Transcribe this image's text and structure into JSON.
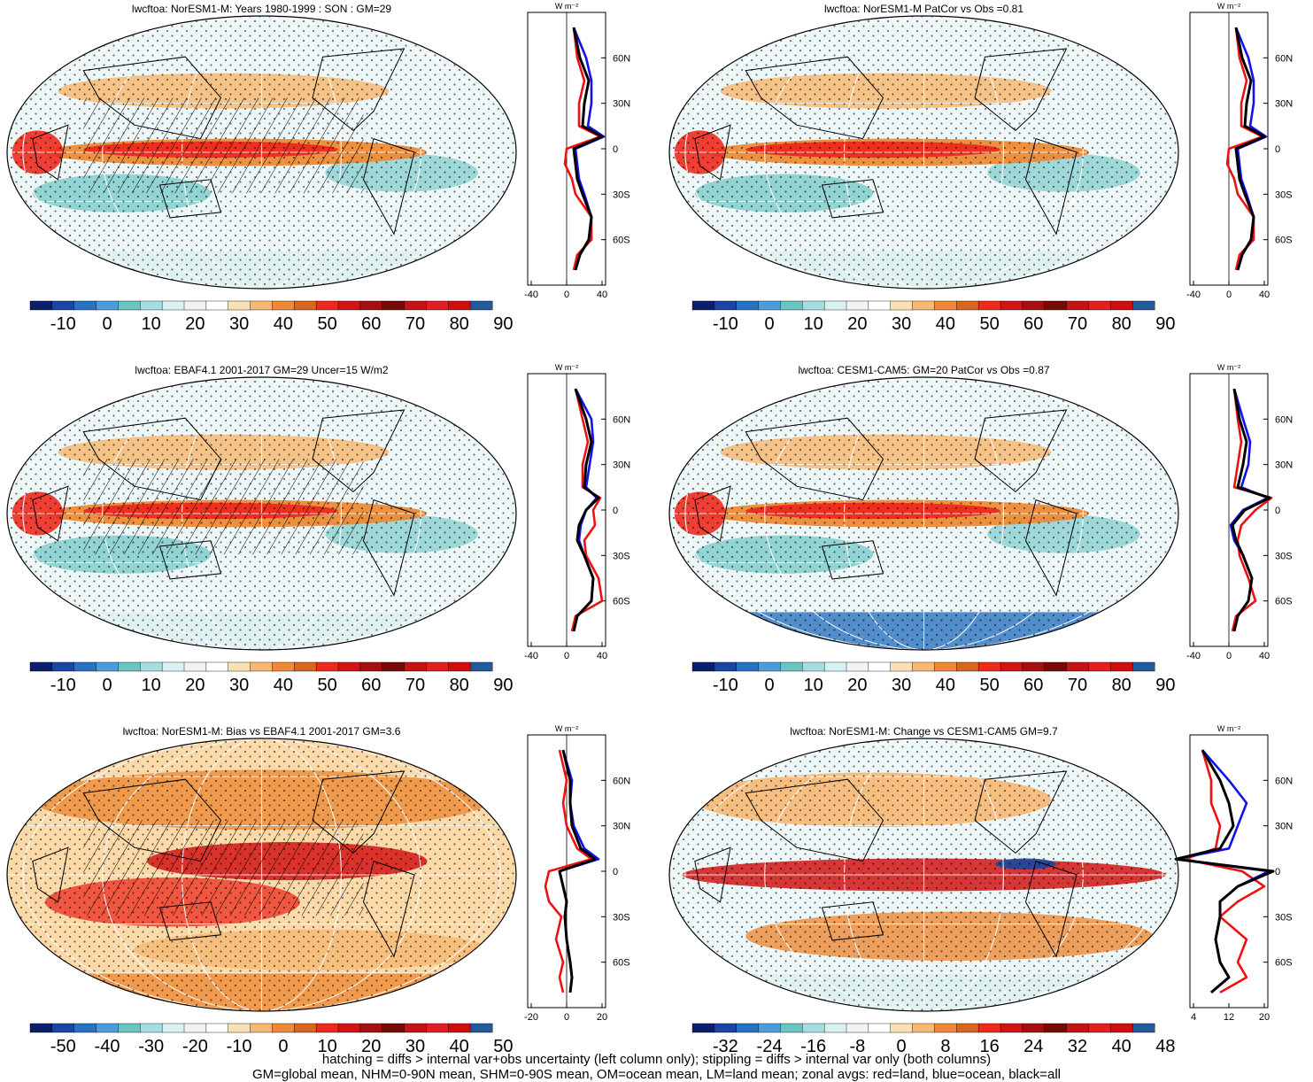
{
  "panels": [
    {
      "title": "lwcftoa: NorESM1-M: Years 1980-1999 : SON : GM=29",
      "colorbar": {
        "labels": [
          "-10",
          "0",
          "10",
          "20",
          "30",
          "40",
          "50",
          "60",
          "70",
          "80",
          "90"
        ]
      },
      "zonal": {
        "xticks": [
          "-40",
          "0",
          "40"
        ],
        "units": "W m⁻²",
        "lat_labels": [
          "60N",
          "30N",
          "0",
          "30S",
          "60S"
        ]
      },
      "hatching": true,
      "stippling": true
    },
    {
      "title": "lwcftoa: NorESM1-M PatCor vs Obs =0.81",
      "colorbar": {
        "labels": [
          "-10",
          "0",
          "10",
          "20",
          "30",
          "40",
          "50",
          "60",
          "70",
          "80",
          "90"
        ]
      },
      "zonal": {
        "xticks": [
          "-40",
          "0",
          "40"
        ],
        "units": "W m⁻²",
        "lat_labels": [
          "60N",
          "30N",
          "0",
          "30S",
          "60S"
        ]
      },
      "hatching": false,
      "stippling": true
    },
    {
      "title": "lwcftoa: EBAF4.1 2001-2017 GM=29 Uncer=15 W/m2",
      "colorbar": {
        "labels": [
          "-10",
          "0",
          "10",
          "20",
          "30",
          "40",
          "50",
          "60",
          "70",
          "80",
          "90"
        ]
      },
      "zonal": {
        "xticks": [
          "-40",
          "0",
          "40"
        ],
        "units": "W m⁻²",
        "lat_labels": [
          "60N",
          "30N",
          "0",
          "30S",
          "60S"
        ]
      },
      "hatching": true,
      "stippling": true
    },
    {
      "title": "lwcftoa: CESM1-CAM5: GM=20 PatCor vs Obs =0.87",
      "colorbar": {
        "labels": [
          "-10",
          "0",
          "10",
          "20",
          "30",
          "40",
          "50",
          "60",
          "70",
          "80",
          "90"
        ]
      },
      "zonal": {
        "xticks": [
          "-40",
          "0",
          "40"
        ],
        "units": "W m⁻²",
        "lat_labels": [
          "60N",
          "30N",
          "0",
          "30S",
          "60S"
        ]
      },
      "hatching": false,
      "stippling": true
    },
    {
      "title": "lwcftoa: NorESM1-M: Bias vs EBAF4.1 2001-2017  GM=3.6",
      "colorbar": {
        "labels": [
          "-50",
          "-40",
          "-30",
          "-20",
          "-10",
          "0",
          "10",
          "20",
          "30",
          "40",
          "50"
        ]
      },
      "zonal": {
        "xticks": [
          "-20",
          "0",
          "20"
        ],
        "units": "W m⁻²",
        "lat_labels": [
          "60N",
          "30N",
          "0",
          "30S",
          "60S"
        ]
      },
      "hatching": true,
      "stippling": true
    },
    {
      "title": "lwcftoa: NorESM1-M: Change vs CESM1-CAM5 GM=9.7",
      "colorbar": {
        "labels": [
          "-32",
          "-24",
          "-16",
          "-8",
          "0",
          "8",
          "16",
          "24",
          "32",
          "40",
          "48"
        ]
      },
      "zonal": {
        "xticks": [
          "4",
          "12",
          "20"
        ],
        "units": "W m⁻²",
        "lat_labels": [
          "60N",
          "30N",
          "0",
          "30S",
          "60S"
        ]
      },
      "hatching": false,
      "stippling": true
    }
  ],
  "colorbar_palette": [
    "#0b1f6b",
    "#1846a0",
    "#2a72c0",
    "#4f9bd9",
    "#6bc3c3",
    "#a5dede",
    "#d8f2f2",
    "#f2f2f2",
    "#ffffff",
    "#fbe0b4",
    "#f6b873",
    "#ec8a36",
    "#d9661c",
    "#ee2a1e",
    "#d21414",
    "#a50f0f",
    "#7a0707",
    "#c51414",
    "#e21f1f",
    "#d10e0e",
    "#225b9a"
  ],
  "footer": {
    "line1": "hatching = diffs > internal var+obs uncertainty (left column only); stippling = diffs > internal var only (both columns)",
    "line2": "GM=global mean, NHM=0-90N mean, SHM=0-90S mean, OM=ocean mean, LM=land mean; zonal avgs: red=land, blue=ocean, black=all"
  },
  "chart_data": [
    {
      "type": "heatmap",
      "title": "lwcftoa: NorESM1-M: Years 1980-1999 : SON : GM=29",
      "colorbar_range": [
        -10,
        90
      ],
      "zonal_mean": {
        "lat": [
          80,
          60,
          45,
          30,
          15,
          8,
          0,
          -10,
          -20,
          -30,
          -45,
          -60,
          -70,
          -80
        ],
        "all": [
          8,
          15,
          25,
          20,
          18,
          40,
          8,
          10,
          12,
          18,
          28,
          25,
          15,
          10
        ],
        "ocean": [
          8,
          22,
          28,
          28,
          24,
          42,
          10,
          12,
          14,
          20,
          28,
          25,
          15,
          10
        ],
        "land": [
          8,
          12,
          20,
          14,
          14,
          38,
          0,
          -2,
          6,
          10,
          28,
          28,
          12,
          8
        ]
      }
    },
    {
      "type": "heatmap",
      "title": "lwcftoa: NorESM1-M PatCor vs Obs =0.81",
      "colorbar_range": [
        -10,
        90
      ],
      "zonal_mean": {
        "lat": [
          80,
          60,
          45,
          30,
          15,
          8,
          0,
          -10,
          -20,
          -30,
          -45,
          -60,
          -70,
          -80
        ],
        "all": [
          8,
          15,
          25,
          20,
          18,
          40,
          8,
          10,
          12,
          18,
          28,
          25,
          15,
          10
        ],
        "ocean": [
          8,
          22,
          28,
          28,
          24,
          42,
          10,
          12,
          14,
          20,
          28,
          25,
          15,
          10
        ],
        "land": [
          8,
          12,
          20,
          14,
          14,
          38,
          0,
          -2,
          6,
          10,
          28,
          28,
          12,
          8
        ]
      }
    },
    {
      "type": "heatmap",
      "title": "lwcftoa: EBAF4.1 2001-2017 GM=29 Uncer=15 W/m2",
      "colorbar_range": [
        -10,
        90
      ],
      "zonal_mean": {
        "lat": [
          80,
          60,
          45,
          30,
          15,
          8,
          0,
          -10,
          -20,
          -30,
          -45,
          -60,
          -70,
          -80
        ],
        "all": [
          10,
          22,
          28,
          22,
          20,
          36,
          22,
          14,
          12,
          20,
          30,
          28,
          12,
          8
        ],
        "ocean": [
          10,
          28,
          30,
          26,
          22,
          34,
          22,
          16,
          14,
          20,
          30,
          28,
          12,
          8
        ],
        "land": [
          10,
          18,
          24,
          18,
          18,
          38,
          30,
          32,
          20,
          22,
          36,
          40,
          10,
          6
        ]
      }
    },
    {
      "type": "heatmap",
      "title": "lwcftoa: CESM1-CAM5: GM=20 PatCor vs Obs =0.87",
      "colorbar_range": [
        -10,
        90
      ],
      "zonal_mean": {
        "lat": [
          80,
          60,
          45,
          30,
          15,
          8,
          0,
          -10,
          -20,
          -30,
          -45,
          -60,
          -70,
          -80
        ],
        "all": [
          6,
          12,
          20,
          16,
          10,
          46,
          18,
          4,
          8,
          16,
          26,
          22,
          10,
          6
        ],
        "ocean": [
          6,
          16,
          24,
          22,
          14,
          44,
          16,
          2,
          6,
          16,
          26,
          22,
          10,
          6
        ],
        "land": [
          6,
          10,
          14,
          10,
          6,
          48,
          30,
          14,
          10,
          12,
          22,
          30,
          8,
          4
        ]
      }
    },
    {
      "type": "heatmap",
      "title": "lwcftoa: NorESM1-M: Bias vs EBAF4.1 2001-2017  GM=3.6",
      "colorbar_range": [
        -50,
        50
      ],
      "zonal_mean": {
        "lat": [
          80,
          60,
          45,
          30,
          15,
          8,
          0,
          -10,
          -20,
          -30,
          -45,
          -60,
          -70,
          -80
        ],
        "all": [
          -2,
          2,
          2,
          3,
          8,
          16,
          -4,
          -2,
          0,
          -1,
          0,
          2,
          3,
          2
        ],
        "ocean": [
          -2,
          3,
          2,
          4,
          10,
          18,
          -4,
          -2,
          0,
          -1,
          0,
          2,
          3,
          2
        ],
        "land": [
          -4,
          0,
          -2,
          0,
          6,
          14,
          -10,
          -12,
          -10,
          -3,
          -6,
          -2,
          -4,
          -2
        ]
      }
    },
    {
      "type": "heatmap",
      "title": "lwcftoa: NorESM1-M: Change vs CESM1-CAM5 GM=9.7",
      "colorbar_range": [
        -32,
        48
      ],
      "zonal_mean": {
        "lat": [
          80,
          60,
          45,
          30,
          15,
          8,
          0,
          -10,
          -20,
          -30,
          -45,
          -60,
          -70,
          -80
        ],
        "all": [
          6,
          10,
          12,
          13,
          10,
          0,
          22,
          14,
          10,
          10,
          9,
          10,
          12,
          8
        ],
        "ocean": [
          6,
          12,
          16,
          14,
          12,
          0,
          21,
          14,
          10,
          10,
          9,
          10,
          12,
          8
        ],
        "land": [
          6,
          8,
          8,
          10,
          9,
          2,
          15,
          20,
          14,
          10,
          16,
          14,
          16,
          10
        ]
      }
    }
  ]
}
